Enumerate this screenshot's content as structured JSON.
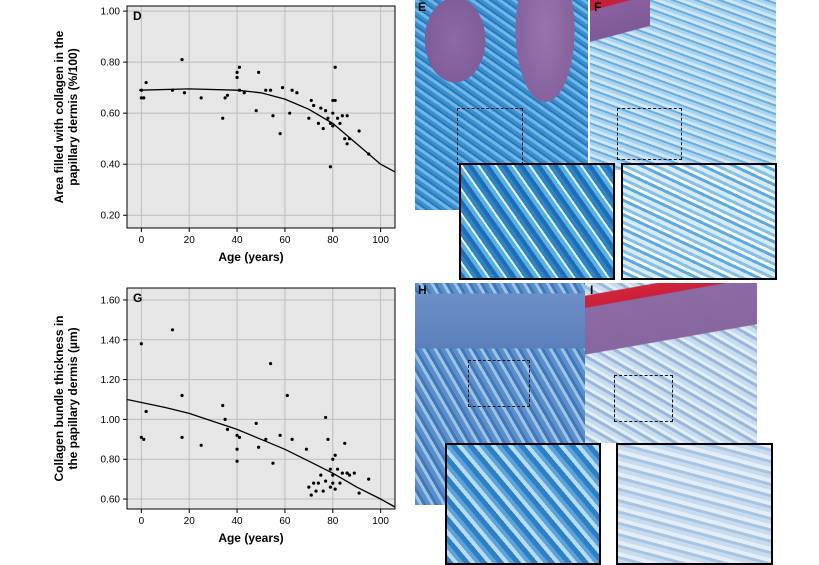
{
  "charts": [
    {
      "panel": "D",
      "type": "scatter",
      "xlabel": "Age (years)",
      "ylabel_lines": [
        "Area filled with collagen in the",
        "papillary dermis (%/100)"
      ],
      "xlim": [
        -6,
        106
      ],
      "ylim": [
        0.15,
        1.02
      ],
      "xticks": [
        0,
        20,
        40,
        60,
        80,
        100
      ],
      "yticks": [
        0.2,
        0.4,
        0.6,
        0.8,
        1.0
      ],
      "ytick_labels": [
        "0.20",
        "0.40",
        "0.60",
        "0.80",
        "1.00"
      ],
      "grid": true,
      "points": [
        [
          0,
          0.66
        ],
        [
          0,
          0.69
        ],
        [
          1,
          0.66
        ],
        [
          2,
          0.72
        ],
        [
          13,
          0.69
        ],
        [
          17,
          0.81
        ],
        [
          18,
          0.68
        ],
        [
          25,
          0.66
        ],
        [
          34,
          0.58
        ],
        [
          35,
          0.66
        ],
        [
          36,
          0.67
        ],
        [
          40,
          0.74
        ],
        [
          40,
          0.76
        ],
        [
          41,
          0.78
        ],
        [
          41,
          0.69
        ],
        [
          43,
          0.68
        ],
        [
          48,
          0.61
        ],
        [
          49,
          0.76
        ],
        [
          52,
          0.69
        ],
        [
          54,
          0.69
        ],
        [
          55,
          0.59
        ],
        [
          58,
          0.52
        ],
        [
          59,
          0.7
        ],
        [
          62,
          0.6
        ],
        [
          63,
          0.69
        ],
        [
          65,
          0.68
        ],
        [
          70,
          0.58
        ],
        [
          71,
          0.65
        ],
        [
          72,
          0.63
        ],
        [
          74,
          0.56
        ],
        [
          75,
          0.62
        ],
        [
          76,
          0.54
        ],
        [
          77,
          0.61
        ],
        [
          78,
          0.58
        ],
        [
          79,
          0.56
        ],
        [
          79,
          0.39
        ],
        [
          80,
          0.65
        ],
        [
          80,
          0.6
        ],
        [
          80,
          0.55
        ],
        [
          81,
          0.78
        ],
        [
          81,
          0.65
        ],
        [
          82,
          0.58
        ],
        [
          83,
          0.56
        ],
        [
          84,
          0.59
        ],
        [
          85,
          0.5
        ],
        [
          86,
          0.48
        ],
        [
          86,
          0.59
        ],
        [
          87,
          0.5
        ],
        [
          91,
          0.53
        ],
        [
          95,
          0.44
        ]
      ],
      "fit": [
        [
          -1,
          0.69
        ],
        [
          20,
          0.695
        ],
        [
          40,
          0.69
        ],
        [
          50,
          0.68
        ],
        [
          60,
          0.655
        ],
        [
          70,
          0.615
        ],
        [
          80,
          0.56
        ],
        [
          90,
          0.48
        ],
        [
          100,
          0.4
        ],
        [
          106,
          0.37
        ]
      ]
    },
    {
      "panel": "G",
      "type": "scatter",
      "xlabel": "Age (years)",
      "ylabel_lines": [
        "Collagen bundle thickness in",
        "the papillary dermis (µm)"
      ],
      "xlim": [
        -6,
        106
      ],
      "ylim": [
        0.55,
        1.66
      ],
      "xticks": [
        0,
        20,
        40,
        60,
        80,
        100
      ],
      "yticks": [
        0.6,
        0.8,
        1.0,
        1.2,
        1.4,
        1.6
      ],
      "ytick_labels": [
        "0.60",
        "0.80",
        "1.00",
        "1.20",
        "1.40",
        "1.60"
      ],
      "grid": true,
      "points": [
        [
          0,
          1.38
        ],
        [
          0,
          0.91
        ],
        [
          1,
          0.9
        ],
        [
          2,
          1.04
        ],
        [
          13,
          1.45
        ],
        [
          17,
          1.12
        ],
        [
          17,
          0.91
        ],
        [
          25,
          0.87
        ],
        [
          34,
          1.07
        ],
        [
          35,
          1.0
        ],
        [
          36,
          0.95
        ],
        [
          40,
          0.92
        ],
        [
          40,
          0.85
        ],
        [
          40,
          0.79
        ],
        [
          41,
          0.91
        ],
        [
          48,
          0.98
        ],
        [
          49,
          0.86
        ],
        [
          52,
          0.9
        ],
        [
          54,
          1.28
        ],
        [
          55,
          0.78
        ],
        [
          58,
          0.92
        ],
        [
          61,
          1.12
        ],
        [
          63,
          0.9
        ],
        [
          69,
          0.85
        ],
        [
          70,
          0.66
        ],
        [
          71,
          0.62
        ],
        [
          72,
          0.68
        ],
        [
          73,
          0.64
        ],
        [
          74,
          0.68
        ],
        [
          75,
          0.72
        ],
        [
          76,
          0.64
        ],
        [
          77,
          1.01
        ],
        [
          77,
          0.69
        ],
        [
          78,
          0.9
        ],
        [
          79,
          0.75
        ],
        [
          79,
          0.66
        ],
        [
          80,
          0.8
        ],
        [
          80,
          0.72
        ],
        [
          80,
          0.68
        ],
        [
          81,
          0.82
        ],
        [
          81,
          0.65
        ],
        [
          82,
          0.75
        ],
        [
          83,
          0.68
        ],
        [
          84,
          0.73
        ],
        [
          85,
          0.88
        ],
        [
          86,
          0.73
        ],
        [
          86,
          0.73
        ],
        [
          87,
          0.72
        ],
        [
          89,
          0.73
        ],
        [
          91,
          0.63
        ],
        [
          95,
          0.7
        ]
      ],
      "fit": [
        [
          -6,
          1.1
        ],
        [
          10,
          1.06
        ],
        [
          20,
          1.03
        ],
        [
          30,
          0.99
        ],
        [
          40,
          0.95
        ],
        [
          50,
          0.9
        ],
        [
          60,
          0.85
        ],
        [
          70,
          0.79
        ],
        [
          80,
          0.73
        ],
        [
          90,
          0.66
        ],
        [
          100,
          0.6
        ],
        [
          106,
          0.56
        ]
      ]
    }
  ],
  "panels": {
    "e": "E",
    "f": "F",
    "h": "H",
    "i": "I"
  }
}
